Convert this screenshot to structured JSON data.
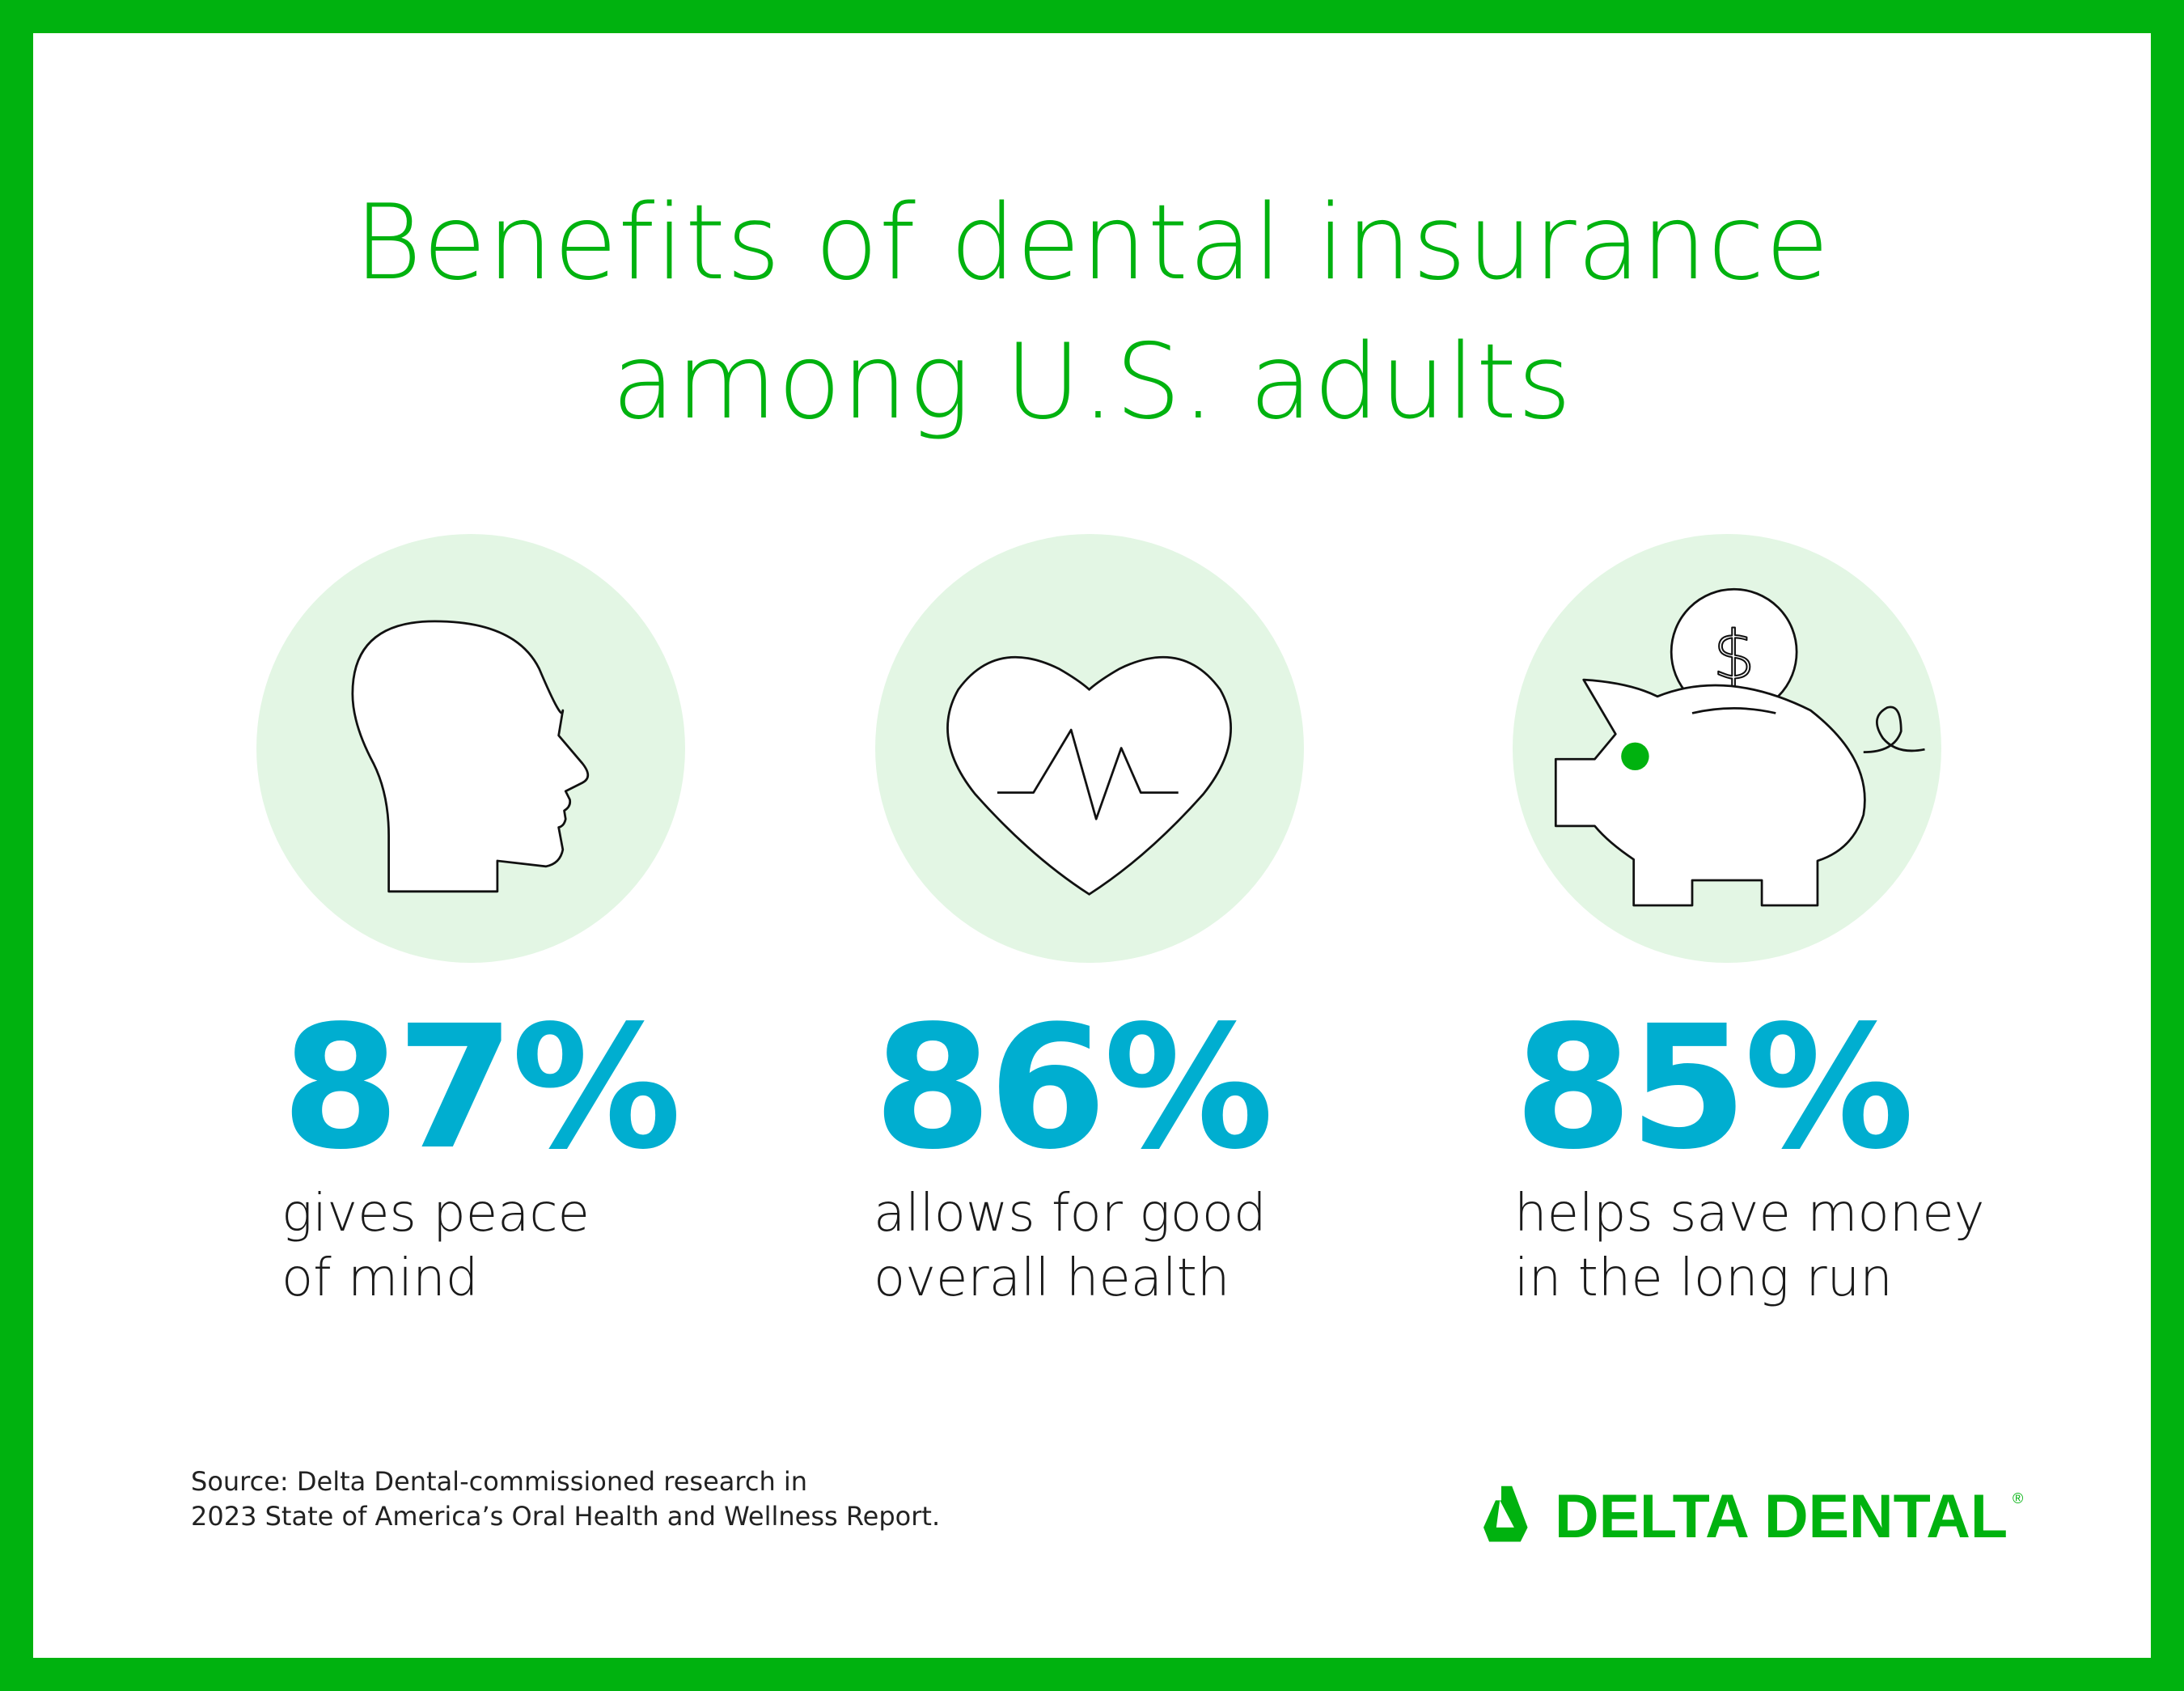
{
  "title": {
    "line1": "Benefits of dental insurance",
    "line2": "among U.S. adults"
  },
  "colors": {
    "brand_green": "#00b20f",
    "stat_blue": "#00aed0",
    "circle_bg": "#e3f6e4"
  },
  "stats": [
    {
      "icon": "head-profile-icon",
      "value": "87%",
      "line1": "gives peace",
      "line2": "of mind"
    },
    {
      "icon": "heart-pulse-icon",
      "value": "86%",
      "line1": "allows for good",
      "line2": "overall health"
    },
    {
      "icon": "piggy-bank-icon",
      "value": "85%",
      "line1": "helps save money",
      "line2": "in the long run"
    }
  ],
  "source": {
    "line1": "Source: Delta Dental-commissioned research in",
    "line2": "2023 State of America’s Oral Health and Wellness Report."
  },
  "logo": {
    "text": "DELTA DENTAL",
    "mark": "®"
  }
}
